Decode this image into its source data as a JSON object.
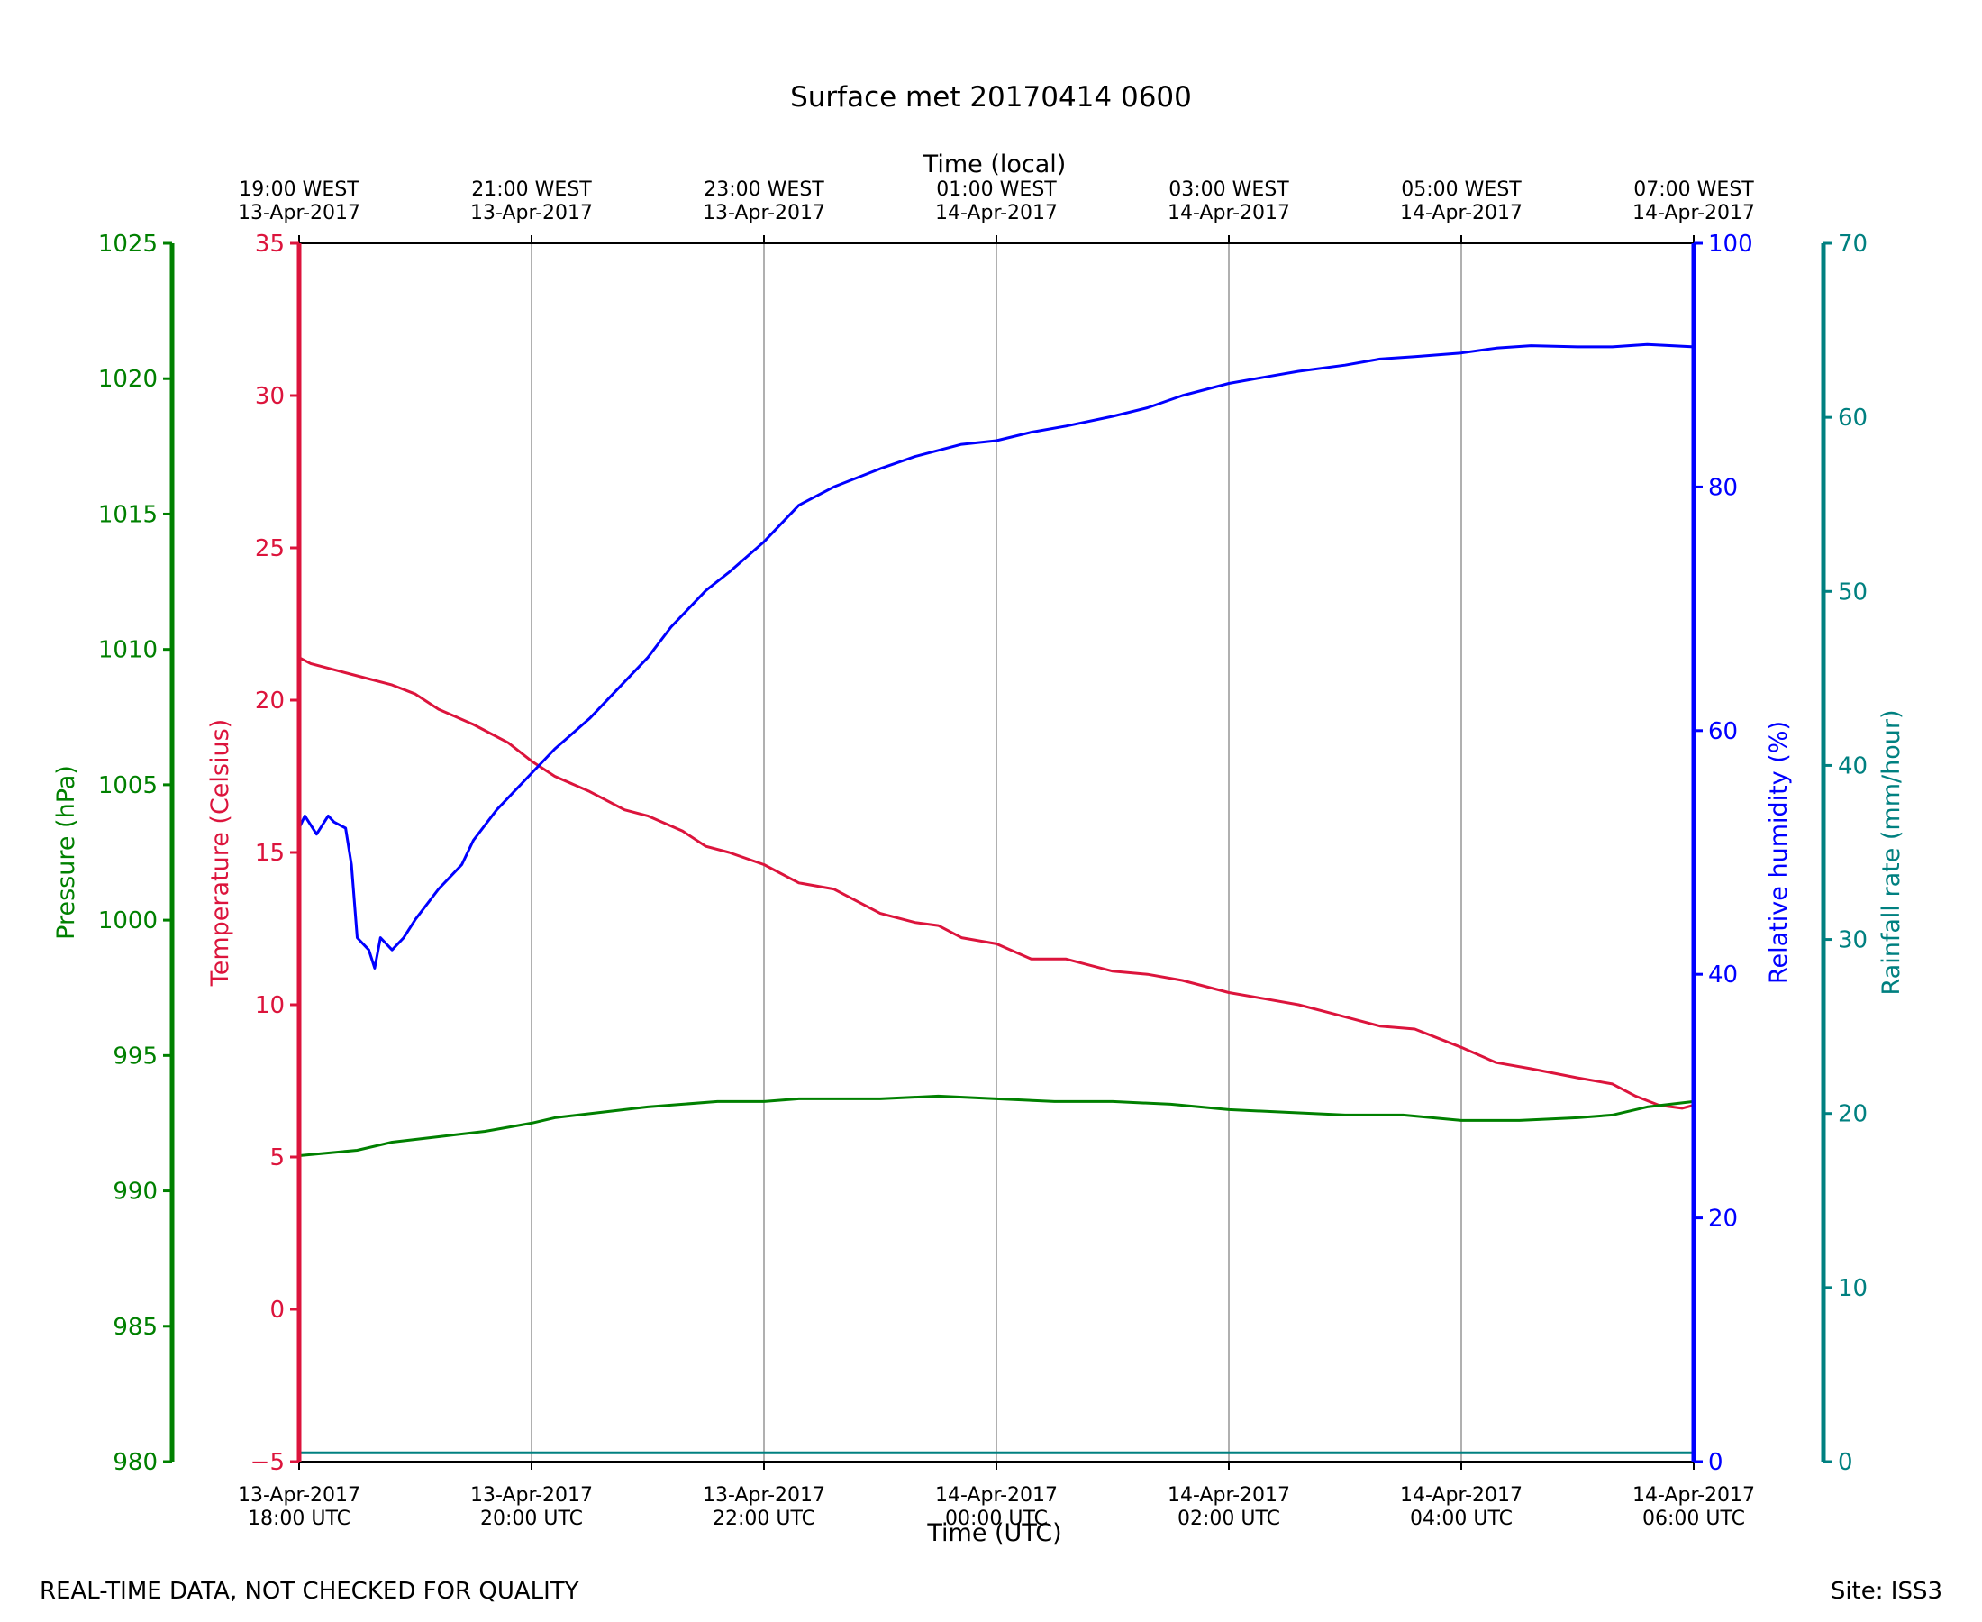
{
  "chart_data": {
    "type": "line",
    "title": "Surface met 20170414 0600",
    "footer_left": "REAL-TIME DATA, NOT CHECKED FOR QUALITY",
    "footer_right": "Site: ISS3",
    "x_bottom": {
      "label": "Time (UTC)",
      "range_hours": [
        0,
        12
      ],
      "ticks": [
        {
          "hour": 0,
          "line1": "13-Apr-2017",
          "line2": "18:00 UTC"
        },
        {
          "hour": 2,
          "line1": "13-Apr-2017",
          "line2": "20:00 UTC"
        },
        {
          "hour": 4,
          "line1": "13-Apr-2017",
          "line2": "22:00 UTC"
        },
        {
          "hour": 6,
          "line1": "14-Apr-2017",
          "line2": "00:00 UTC"
        },
        {
          "hour": 8,
          "line1": "14-Apr-2017",
          "line2": "02:00 UTC"
        },
        {
          "hour": 10,
          "line1": "14-Apr-2017",
          "line2": "04:00 UTC"
        },
        {
          "hour": 12,
          "line1": "14-Apr-2017",
          "line2": "06:00 UTC"
        }
      ]
    },
    "x_top": {
      "label": "Time (local)",
      "ticks": [
        {
          "hour": 0,
          "line1": "19:00 WEST",
          "line2": "13-Apr-2017"
        },
        {
          "hour": 2,
          "line1": "21:00 WEST",
          "line2": "13-Apr-2017"
        },
        {
          "hour": 4,
          "line1": "23:00 WEST",
          "line2": "13-Apr-2017"
        },
        {
          "hour": 6,
          "line1": "01:00 WEST",
          "line2": "14-Apr-2017"
        },
        {
          "hour": 8,
          "line1": "03:00 WEST",
          "line2": "14-Apr-2017"
        },
        {
          "hour": 10,
          "line1": "05:00 WEST",
          "line2": "14-Apr-2017"
        },
        {
          "hour": 12,
          "line1": "07:00 WEST",
          "line2": "14-Apr-2017"
        }
      ]
    },
    "grid": "vertical",
    "axes": {
      "pressure": {
        "label": "Pressure (hPa)",
        "color": "#008000",
        "range": [
          980,
          1025
        ],
        "ticks": [
          980,
          985,
          990,
          995,
          1000,
          1005,
          1010,
          1015,
          1020,
          1025
        ]
      },
      "temperature": {
        "label": "Temperature (Celsius)",
        "color": "#dc143c",
        "range": [
          -5,
          35
        ],
        "ticks": [
          -5,
          0,
          5,
          10,
          15,
          20,
          25,
          30,
          35
        ]
      },
      "humidity": {
        "label": "Relative humidity (%)",
        "color": "#0000ff",
        "range": [
          0,
          100
        ],
        "ticks": [
          0,
          20,
          40,
          60,
          80,
          100
        ]
      },
      "rainfall": {
        "label": "Rainfall rate (mm/hour)",
        "color": "#008080",
        "range": [
          0,
          70
        ],
        "ticks": [
          0,
          10,
          20,
          30,
          40,
          50,
          60,
          70
        ]
      }
    },
    "series": [
      {
        "axis": "temperature",
        "color": "#dc143c",
        "x": [
          0,
          0.1,
          0.3,
          0.5,
          0.8,
          1.0,
          1.2,
          1.5,
          1.8,
          2.0,
          2.2,
          2.5,
          2.8,
          3.0,
          3.3,
          3.5,
          3.7,
          4.0,
          4.3,
          4.6,
          5.0,
          5.3,
          5.5,
          5.7,
          6.0,
          6.3,
          6.6,
          7.0,
          7.3,
          7.6,
          8.0,
          8.3,
          8.6,
          8.9,
          9.3,
          9.6,
          10.0,
          10.3,
          10.6,
          11.0,
          11.3,
          11.5,
          11.7,
          11.9,
          12.0
        ],
        "y": [
          21.4,
          21.2,
          21.0,
          20.8,
          20.5,
          20.2,
          19.7,
          19.2,
          18.6,
          18.0,
          17.5,
          17.0,
          16.4,
          16.2,
          15.7,
          15.2,
          15.0,
          14.6,
          14.0,
          13.8,
          13.0,
          12.7,
          12.6,
          12.2,
          12.0,
          11.5,
          11.5,
          11.1,
          11.0,
          10.8,
          10.4,
          10.2,
          10.0,
          9.7,
          9.3,
          9.2,
          8.6,
          8.1,
          7.9,
          7.6,
          7.4,
          7.0,
          6.7,
          6.6,
          6.7
        ]
      },
      {
        "axis": "humidity",
        "color": "#0000ff",
        "x": [
          0,
          0.05,
          0.15,
          0.25,
          0.3,
          0.4,
          0.45,
          0.5,
          0.6,
          0.65,
          0.7,
          0.8,
          0.9,
          1.0,
          1.2,
          1.4,
          1.5,
          1.7,
          2.0,
          2.2,
          2.5,
          2.7,
          3.0,
          3.2,
          3.5,
          3.7,
          4.0,
          4.3,
          4.6,
          5.0,
          5.3,
          5.5,
          5.7,
          6.0,
          6.3,
          6.6,
          7.0,
          7.3,
          7.6,
          8.0,
          8.3,
          8.6,
          9.0,
          9.3,
          9.6,
          10.0,
          10.3,
          10.6,
          11.0,
          11.3,
          11.6,
          12.0
        ],
        "y": [
          52.0,
          53.0,
          51.5,
          53.0,
          52.5,
          52.0,
          49.0,
          43.0,
          42.0,
          40.5,
          43.0,
          42.0,
          43.0,
          44.5,
          47.0,
          49.0,
          51.0,
          53.5,
          56.5,
          58.5,
          61.0,
          63.0,
          66.0,
          68.5,
          71.5,
          73.0,
          75.5,
          78.5,
          80.0,
          81.5,
          82.5,
          83.0,
          83.5,
          83.8,
          84.5,
          85.0,
          85.8,
          86.5,
          87.5,
          88.5,
          89.0,
          89.5,
          90.0,
          90.5,
          90.7,
          91.0,
          91.4,
          91.6,
          91.5,
          91.5,
          91.7,
          91.5
        ]
      },
      {
        "axis": "pressure",
        "color": "#008000",
        "x": [
          0,
          0.5,
          0.8,
          1.2,
          1.6,
          2.0,
          2.2,
          2.6,
          3.0,
          3.3,
          3.6,
          4.0,
          4.3,
          5.0,
          5.5,
          6.0,
          6.5,
          7.0,
          7.5,
          8.0,
          8.5,
          9.0,
          9.5,
          10.0,
          10.5,
          11.0,
          11.3,
          11.6,
          12.0
        ],
        "y": [
          991.3,
          991.5,
          991.8,
          992.0,
          992.2,
          992.5,
          992.7,
          992.9,
          993.1,
          993.2,
          993.3,
          993.3,
          993.4,
          993.4,
          993.5,
          993.4,
          993.3,
          993.3,
          993.2,
          993.0,
          992.9,
          992.8,
          992.8,
          992.6,
          992.6,
          992.7,
          992.8,
          993.1,
          993.3
        ]
      },
      {
        "axis": "rainfall",
        "color": "#008080",
        "x": [
          0,
          12
        ],
        "y": [
          0.5,
          0.5
        ]
      }
    ]
  }
}
